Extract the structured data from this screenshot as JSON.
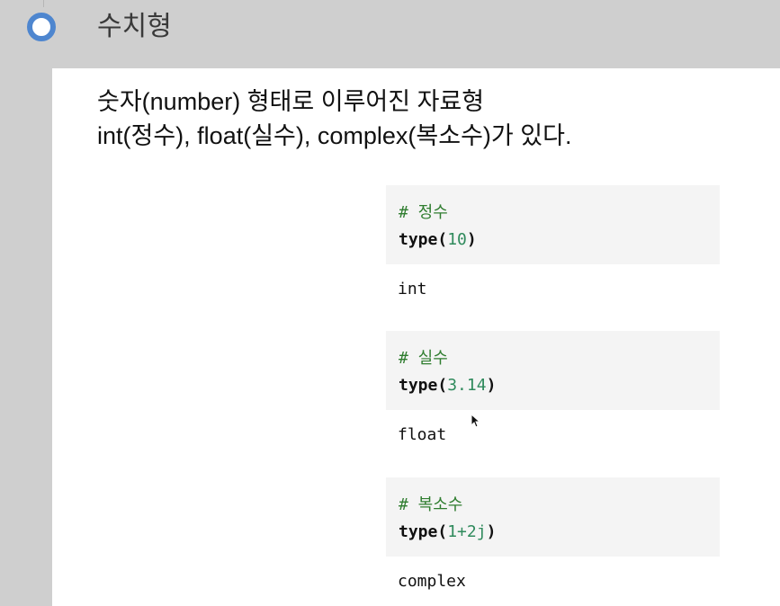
{
  "section": {
    "title": "수치형"
  },
  "description": {
    "line1": "숫자(number) 형태로 이루어진 자료형",
    "line2": "int(정수), float(실수), complex(복소수)가 있다."
  },
  "cells": [
    {
      "comment": "# 정수",
      "func": "type",
      "open": "(",
      "arg": "10",
      "close": ")",
      "output": "int"
    },
    {
      "comment": "# 실수",
      "func": "type",
      "open": "(",
      "arg": "3.14",
      "close": ")",
      "output": "float"
    },
    {
      "comment": "# 복소수",
      "func": "type",
      "open": "(",
      "arg": "1+2j",
      "close": ")",
      "output": "complex"
    }
  ],
  "colors": {
    "ring": "#4e86cf",
    "comment": "#2f7d2f",
    "number": "#2f8a5c"
  }
}
